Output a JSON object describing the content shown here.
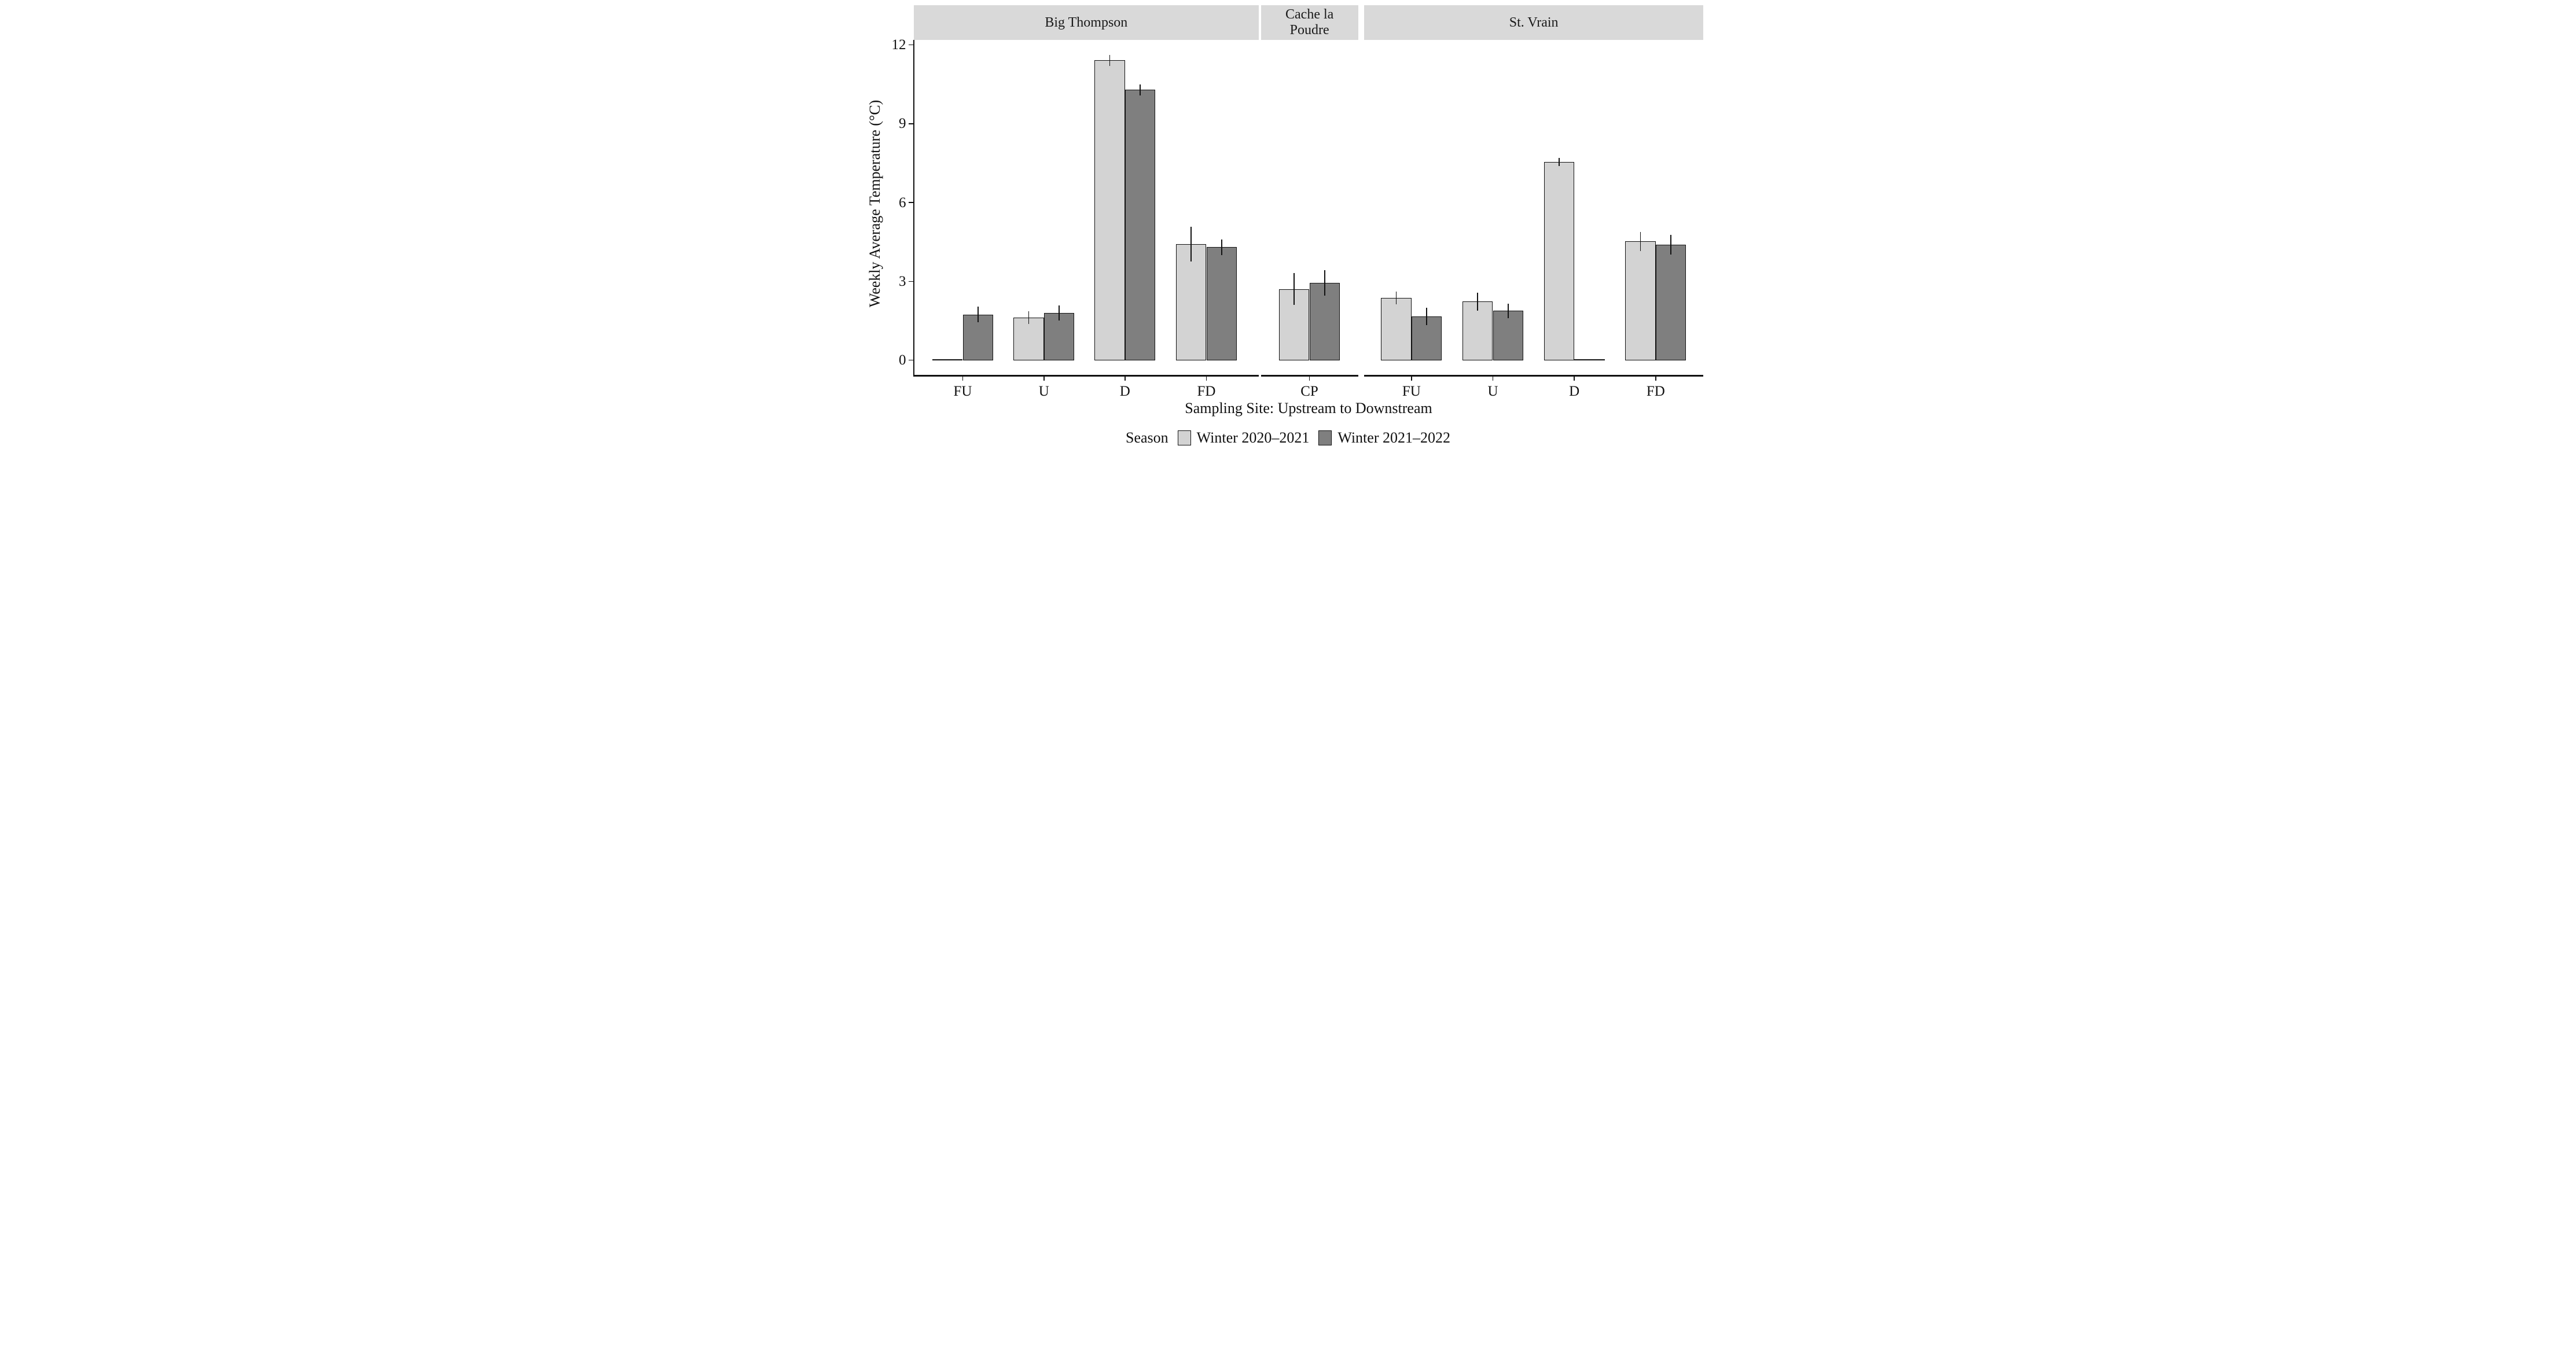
{
  "chart_data": {
    "type": "bar",
    "title": "",
    "xlabel": "Sampling Site: Upstream to Downstream",
    "ylabel": "Weekly Average Temperature (°C)",
    "ylim": [
      0,
      12
    ],
    "yticks": [
      0,
      3,
      6,
      9,
      12
    ],
    "grid": false,
    "legend_title": "Season",
    "legend_position": "bottom",
    "strip_background": "#d9d9d9",
    "bar_outline_color": "#111111",
    "series": [
      {
        "name": "Winter 2020–2021",
        "color": "#d3d3d3"
      },
      {
        "name": "Winter 2021–2022",
        "color": "#7f7f7f"
      }
    ],
    "facets": [
      {
        "label": "Big Thompson",
        "strip_lines": [
          "Big Thompson"
        ],
        "groups": [
          {
            "site": "FU",
            "bars": [
              {
                "series": "Winter 2020–2021",
                "value": 0,
                "zero_height": true
              },
              {
                "series": "Winter 2021–2022",
                "value": 1.73,
                "err_low": 1.44,
                "err_high": 2.04
              }
            ]
          },
          {
            "site": "U",
            "bars": [
              {
                "series": "Winter 2020–2021",
                "value": 1.62,
                "err_low": 1.37,
                "err_high": 1.87
              },
              {
                "series": "Winter 2021–2022",
                "value": 1.8,
                "err_low": 1.52,
                "err_high": 2.09
              }
            ]
          },
          {
            "site": "D",
            "bars": [
              {
                "series": "Winter 2020–2021",
                "value": 11.41,
                "err_low": 11.21,
                "err_high": 11.61
              },
              {
                "series": "Winter 2021–2022",
                "value": 10.29,
                "err_low": 10.08,
                "err_high": 10.5
              }
            ]
          },
          {
            "site": "FD",
            "bars": [
              {
                "series": "Winter 2020–2021",
                "value": 4.41,
                "err_low": 3.76,
                "err_high": 5.07
              },
              {
                "series": "Winter 2021–2022",
                "value": 4.3,
                "err_low": 4.01,
                "err_high": 4.59
              }
            ]
          }
        ]
      },
      {
        "label": "Cache la Poudre",
        "strip_lines": [
          "Cache la",
          "Poudre"
        ],
        "groups": [
          {
            "site": "CP",
            "bars": [
              {
                "series": "Winter 2020–2021",
                "value": 2.71,
                "err_low": 2.11,
                "err_high": 3.32
              },
              {
                "series": "Winter 2021–2022",
                "value": 2.94,
                "err_low": 2.46,
                "err_high": 3.42
              }
            ]
          }
        ]
      },
      {
        "label": "St. Vrain",
        "strip_lines": [
          "St. Vrain"
        ],
        "groups": [
          {
            "site": "FU",
            "bars": [
              {
                "series": "Winter 2020–2021",
                "value": 2.37,
                "err_low": 2.13,
                "err_high": 2.62
              },
              {
                "series": "Winter 2021–2022",
                "value": 1.66,
                "err_low": 1.33,
                "err_high": 2.0
              }
            ]
          },
          {
            "site": "U",
            "bars": [
              {
                "series": "Winter 2020–2021",
                "value": 2.24,
                "err_low": 1.89,
                "err_high": 2.57
              },
              {
                "series": "Winter 2021–2022",
                "value": 1.88,
                "err_low": 1.61,
                "err_high": 2.16
              }
            ]
          },
          {
            "site": "D",
            "bars": [
              {
                "series": "Winter 2020–2021",
                "value": 7.55,
                "err_low": 7.39,
                "err_high": 7.71
              },
              {
                "series": "Winter 2021–2022",
                "value": 0,
                "zero_height": true
              }
            ]
          },
          {
            "site": "FD",
            "bars": [
              {
                "series": "Winter 2020–2021",
                "value": 4.52,
                "err_low": 4.16,
                "err_high": 4.88
              },
              {
                "series": "Winter 2021–2022",
                "value": 4.4,
                "err_low": 4.03,
                "err_high": 4.78
              }
            ]
          }
        ]
      }
    ]
  }
}
